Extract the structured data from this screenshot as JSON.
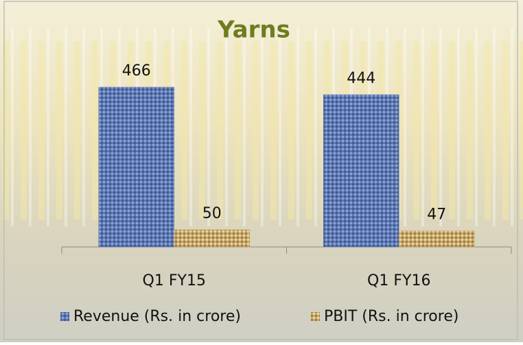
{
  "chart_data": {
    "type": "bar",
    "title": "Yarns",
    "categories": [
      "Q1 FY15",
      "Q1 FY16"
    ],
    "series": [
      {
        "name": "Revenue (Rs. in crore)",
        "color": "#5d79b4",
        "values": [
          466,
          444
        ]
      },
      {
        "name": "PBIT (Rs. in crore)",
        "color": "#c9a96a",
        "values": [
          50,
          47
        ]
      }
    ],
    "legend": "bottom"
  }
}
